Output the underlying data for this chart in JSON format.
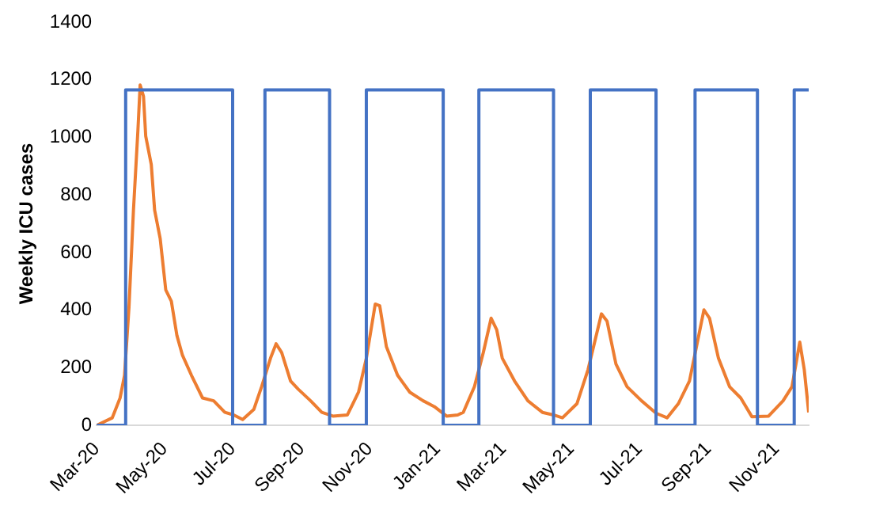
{
  "chart_data": {
    "type": "line",
    "ylabel": "Weekly ICU cases",
    "ylim": [
      0,
      1400
    ],
    "yticks": [
      0,
      200,
      400,
      600,
      800,
      1000,
      1200,
      1400
    ],
    "xlim": [
      "2020-03-01",
      "2021-11-30"
    ],
    "xticks": [
      {
        "value": "2020-03-01",
        "label": "Mar-20"
      },
      {
        "value": "2020-05-01",
        "label": "May-20"
      },
      {
        "value": "2020-07-01",
        "label": "Jul-20"
      },
      {
        "value": "2020-09-01",
        "label": "Sep-20"
      },
      {
        "value": "2020-11-01",
        "label": "Nov-20"
      },
      {
        "value": "2021-01-01",
        "label": "Jan-21"
      },
      {
        "value": "2021-03-01",
        "label": "Mar-21"
      },
      {
        "value": "2021-05-01",
        "label": "May-21"
      },
      {
        "value": "2021-07-01",
        "label": "Jul-21"
      },
      {
        "value": "2021-09-01",
        "label": "Sep-21"
      },
      {
        "value": "2021-11-01",
        "label": "Nov-21"
      }
    ],
    "marker": "none",
    "line_style": "solid",
    "legend": false,
    "series": [
      {
        "color": "#4472c4",
        "type": "step",
        "x": [
          "2020-03-01",
          "2020-03-27",
          "2020-07-01",
          "2020-07-30",
          "2020-09-26",
          "2020-10-29",
          "2021-01-06",
          "2021-02-07",
          "2021-04-15",
          "2021-05-18",
          "2021-07-16",
          "2021-08-20",
          "2021-10-15",
          "2021-11-17",
          "2021-11-30"
        ],
        "values": [
          0,
          1165,
          0,
          1165,
          0,
          1165,
          0,
          1165,
          0,
          1165,
          0,
          1165,
          0,
          1165,
          1165
        ]
      },
      {
        "color": "#ed7d31",
        "x": [
          "2020-03-01",
          "2020-03-15",
          "2020-03-22",
          "2020-03-26",
          "2020-03-30",
          "2020-04-03",
          "2020-04-07",
          "2020-04-09",
          "2020-04-12",
          "2020-04-14",
          "2020-04-19",
          "2020-04-22",
          "2020-04-27",
          "2020-05-02",
          "2020-05-07",
          "2020-05-12",
          "2020-05-17",
          "2020-05-25",
          "2020-06-04",
          "2020-06-14",
          "2020-06-24",
          "2020-07-02",
          "2020-07-10",
          "2020-07-20",
          "2020-07-27",
          "2020-08-04",
          "2020-08-09",
          "2020-08-14",
          "2020-08-22",
          "2020-08-29",
          "2020-09-09",
          "2020-09-19",
          "2020-09-29",
          "2020-10-12",
          "2020-10-22",
          "2020-10-29",
          "2020-11-06",
          "2020-11-10",
          "2020-11-16",
          "2020-11-26",
          "2020-12-07",
          "2020-12-19",
          "2020-12-29",
          "2021-01-09",
          "2021-01-19",
          "2021-01-24",
          "2021-02-03",
          "2021-02-11",
          "2021-02-18",
          "2021-02-23",
          "2021-02-28",
          "2021-03-11",
          "2021-03-23",
          "2021-04-05",
          "2021-04-15",
          "2021-04-23",
          "2021-05-06",
          "2021-05-16",
          "2021-05-28",
          "2021-06-02",
          "2021-06-10",
          "2021-06-20",
          "2021-07-03",
          "2021-07-16",
          "2021-07-26",
          "2021-08-05",
          "2021-08-15",
          "2021-08-28",
          "2021-09-02",
          "2021-09-10",
          "2021-09-20",
          "2021-09-30",
          "2021-10-10",
          "2021-10-25",
          "2021-11-07",
          "2021-11-15",
          "2021-11-22",
          "2021-11-26",
          "2021-11-30"
        ],
        "values": [
          0,
          26,
          95,
          174,
          411,
          747,
          1024,
          1182,
          1143,
          1004,
          905,
          747,
          648,
          470,
          431,
          312,
          243,
          174,
          95,
          85,
          45,
          36,
          20,
          55,
          134,
          233,
          283,
          253,
          154,
          125,
          85,
          45,
          32,
          36,
          115,
          233,
          421,
          415,
          273,
          174,
          115,
          85,
          65,
          32,
          36,
          45,
          134,
          253,
          372,
          332,
          233,
          154,
          85,
          45,
          36,
          26,
          75,
          194,
          387,
          362,
          213,
          134,
          85,
          42,
          26,
          75,
          154,
          401,
          372,
          233,
          134,
          95,
          30,
          32,
          85,
          134,
          289,
          194,
          45
        ]
      }
    ]
  }
}
